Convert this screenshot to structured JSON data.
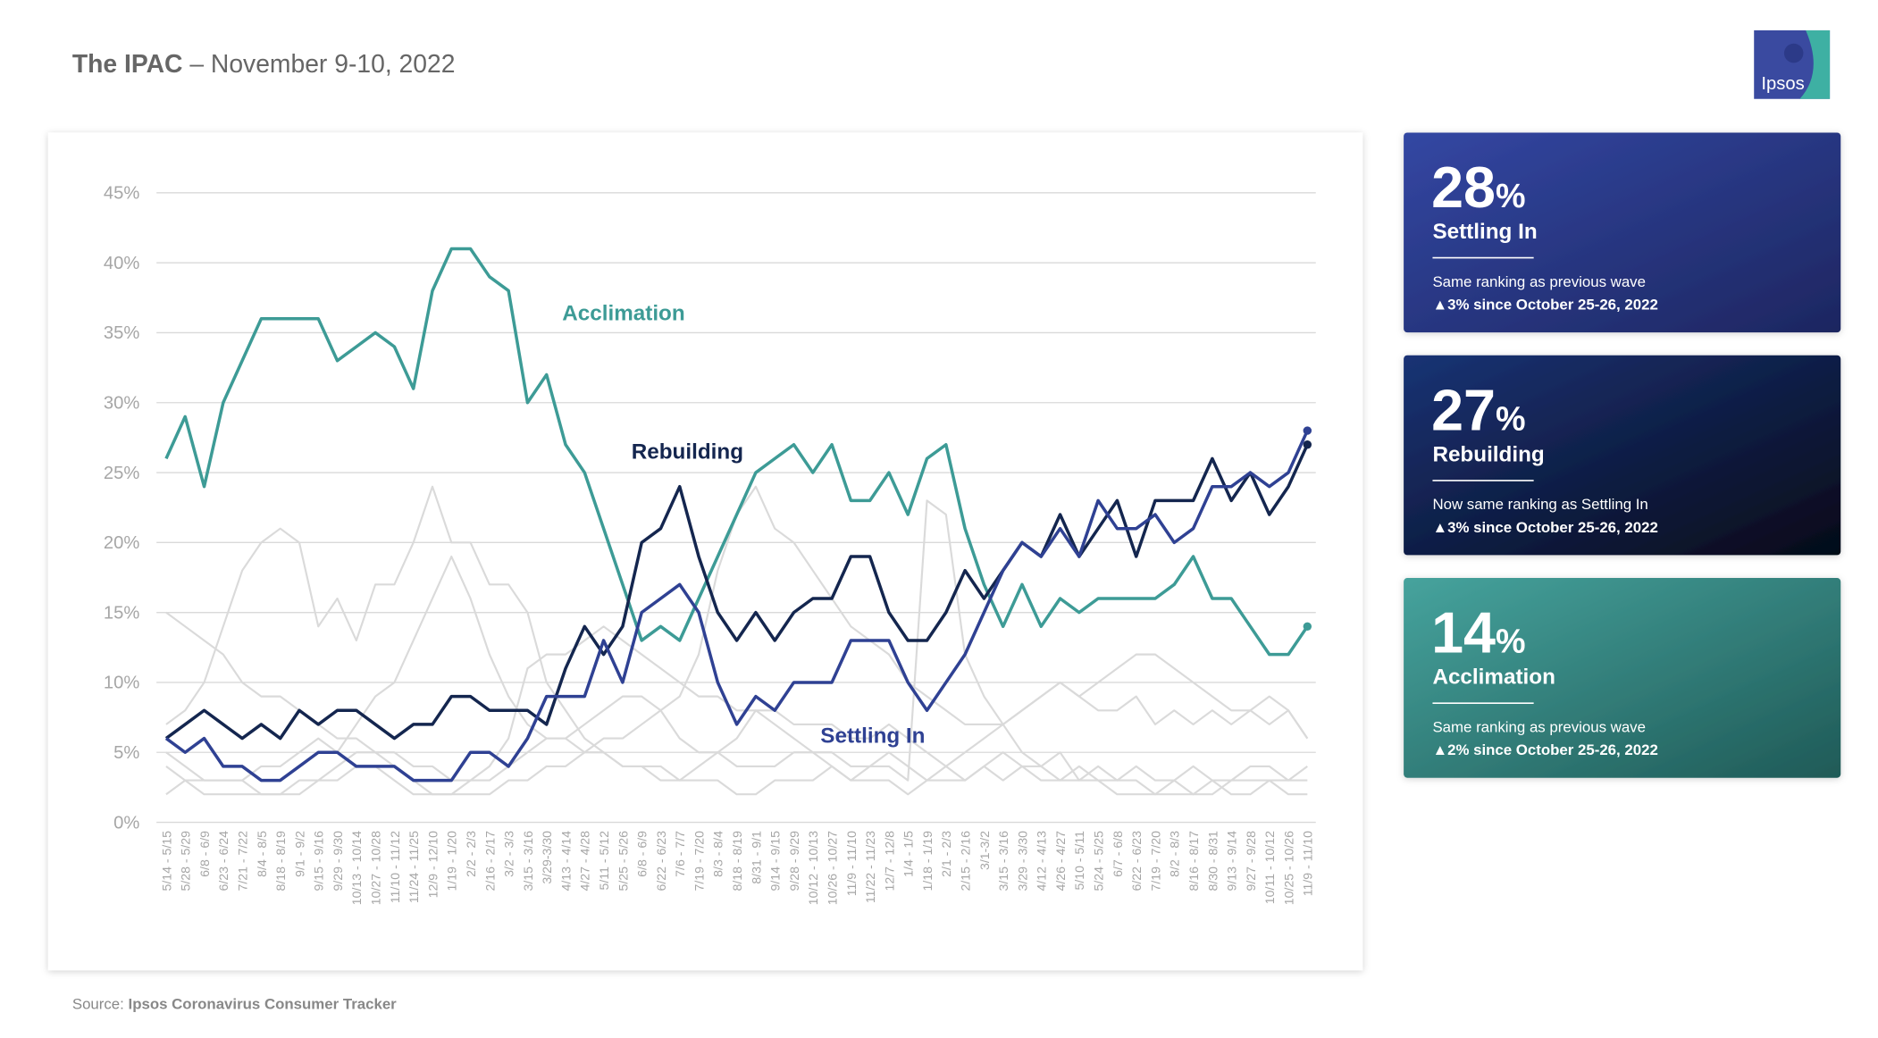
{
  "header": {
    "title": "The IPAC",
    "subtitle": "– November 9-10, 2022",
    "logo": "Ipsos"
  },
  "chart_data": {
    "type": "line",
    "categories": [
      "5/14 - 5/15",
      "5/28 - 5/29",
      "6/8 - 6/9",
      "6/23 - 6/24",
      "7/21 - 7/22",
      "8/4 - 8/5",
      "8/18 - 8/19",
      "9/1 - 9/2",
      "9/15 - 9/16",
      "9/29 - 9/30",
      "10/13 - 10/14",
      "10/27 - 10/28",
      "11/10 - 11/12",
      "11/24 - 11/25",
      "12/9 - 12/10",
      "1/19 - 1/20",
      "2/2 - 2/3",
      "2/16 - 2/17",
      "3/2 - 3/3",
      "3/15 - 3/16",
      "3/29-3/30",
      "4/13 - 4/14",
      "4/27 - 4/28",
      "5/11 - 5/12",
      "5/25 - 5/26",
      "6/8 - 6/9",
      "6/22 - 6/23",
      "7/6 - 7/7",
      "7/19 - 7/20",
      "8/3 - 8/4",
      "8/18 - 8/19",
      "8/31 - 9/1",
      "9/14 - 9/15",
      "9/28 - 9/29",
      "10/12 - 10/13",
      "10/26 - 10/27",
      "11/9 - 11/10",
      "11/22 - 11/23",
      "12/7 - 12/8",
      "1/4 - 1/5",
      "1/18 - 1/19",
      "2/1 - 2/3",
      "2/15 - 2/16",
      "3/1-3/2",
      "3/15 - 3/16",
      "3/29 - 3/30",
      "4/12 - 4/13",
      "4/26 - 4/27",
      "5/10 - 5/11",
      "5/24 - 5/25",
      "6/7 - 6/8",
      "6/22 - 6/23",
      "7/19 - 7/20",
      "8/2 - 8/3",
      "8/16 - 8/17",
      "8/30 - 8/31",
      "9/13 - 9/14",
      "9/27 - 9/28",
      "10/11 - 10/12",
      "10/25 - 10/26",
      "11/9 - 11/10"
    ],
    "ylim": [
      0,
      45
    ],
    "yticks": [
      {
        "value": 0,
        "label": "0%"
      },
      {
        "value": 5,
        "label": "5%"
      },
      {
        "value": 10,
        "label": "10%"
      },
      {
        "value": 15,
        "label": "15%"
      },
      {
        "value": 20,
        "label": "20%"
      },
      {
        "value": 25,
        "label": "25%"
      },
      {
        "value": 30,
        "label": "30%"
      },
      {
        "value": 35,
        "label": "35%"
      },
      {
        "value": 40,
        "label": "40%"
      },
      {
        "value": 45,
        "label": "45%"
      }
    ],
    "grid": true,
    "series": [
      {
        "color": "#dadada",
        "values": [
          15,
          14,
          13,
          12,
          10,
          9,
          9,
          8,
          7,
          6,
          6,
          5,
          5,
          4,
          4,
          3,
          3,
          3,
          4,
          5,
          6,
          6,
          5,
          5,
          4,
          4,
          4,
          3,
          3,
          3,
          2,
          2,
          3,
          3,
          3,
          4,
          3,
          3,
          3,
          2,
          3,
          3,
          3,
          4,
          3,
          4,
          4,
          5,
          3,
          4,
          3,
          4,
          3,
          3,
          4,
          3,
          3,
          3,
          3,
          3,
          3
        ]
      },
      {
        "color": "#dadada",
        "values": [
          7,
          8,
          10,
          14,
          18,
          20,
          21,
          20,
          14,
          16,
          13,
          17,
          17,
          20,
          24,
          20,
          20,
          17,
          17,
          15,
          10,
          8,
          6,
          5,
          4,
          4,
          3,
          3,
          4,
          5,
          6,
          8,
          7,
          6,
          5,
          5,
          4,
          4,
          5,
          4,
          3,
          4,
          5,
          6,
          7,
          8,
          9,
          10,
          9,
          8,
          8,
          9,
          7,
          8,
          7,
          8,
          7,
          8,
          7,
          8,
          6
        ]
      },
      {
        "color": "#dadada",
        "values": [
          5,
          4,
          3,
          3,
          3,
          4,
          4,
          5,
          6,
          5,
          7,
          9,
          10,
          13,
          16,
          19,
          16,
          12,
          9,
          7,
          6,
          6,
          7,
          8,
          9,
          9,
          8,
          6,
          5,
          5,
          4,
          4,
          4,
          5,
          5,
          4,
          3,
          4,
          4,
          3,
          23,
          22,
          12,
          9,
          7,
          5,
          4,
          3,
          3,
          3,
          3,
          3,
          2,
          2,
          2,
          3,
          2,
          2,
          3,
          2,
          2
        ]
      },
      {
        "color": "#dadada",
        "values": [
          4,
          3,
          2,
          2,
          2,
          2,
          2,
          3,
          3,
          3,
          4,
          4,
          3,
          2,
          2,
          2,
          2,
          2,
          3,
          3,
          4,
          4,
          5,
          6,
          6,
          7,
          8,
          9,
          12,
          18,
          22,
          24,
          21,
          20,
          18,
          16,
          14,
          13,
          12,
          10,
          9,
          8,
          7,
          7,
          7,
          8,
          9,
          10,
          9,
          10,
          11,
          12,
          12,
          11,
          10,
          9,
          8,
          8,
          9,
          8,
          6
        ]
      },
      {
        "color": "#dadada",
        "values": [
          2,
          3,
          3,
          3,
          3,
          2,
          2,
          2,
          3,
          4,
          5,
          5,
          4,
          3,
          2,
          2,
          3,
          4,
          6,
          11,
          12,
          12,
          13,
          14,
          13,
          12,
          11,
          10,
          9,
          9,
          8,
          8,
          8,
          7,
          7,
          7,
          6,
          6,
          7,
          6,
          5,
          4,
          3,
          4,
          5,
          4,
          3,
          3,
          4,
          3,
          2,
          2,
          2,
          3,
          2,
          2,
          3,
          4,
          4,
          3,
          4
        ]
      },
      {
        "name": "Acclimation",
        "color": "#3d9b96",
        "values": [
          26,
          29,
          24,
          30,
          33,
          36,
          36,
          36,
          36,
          33,
          34,
          35,
          34,
          31,
          38,
          41,
          41,
          39,
          38,
          30,
          32,
          27,
          25,
          21,
          17,
          13,
          14,
          13,
          16,
          19,
          22,
          25,
          26,
          27,
          25,
          27,
          23,
          23,
          25,
          22,
          26,
          27,
          21,
          17,
          14,
          17,
          14,
          16,
          15,
          16,
          16,
          16,
          16,
          17,
          19,
          16,
          16,
          14,
          12,
          12,
          14
        ]
      },
      {
        "name": "Rebuilding",
        "color": "#14264f",
        "values": [
          6,
          7,
          8,
          7,
          6,
          7,
          6,
          8,
          7,
          8,
          8,
          7,
          6,
          7,
          7,
          9,
          9,
          8,
          8,
          8,
          7,
          11,
          14,
          12,
          14,
          20,
          21,
          24,
          19,
          15,
          13,
          15,
          13,
          15,
          16,
          16,
          19,
          19,
          15,
          13,
          13,
          15,
          18,
          16,
          18,
          20,
          19,
          22,
          19,
          21,
          23,
          19,
          23,
          23,
          23,
          26,
          23,
          25,
          22,
          24,
          27
        ]
      },
      {
        "name": "Settling In",
        "color": "#2f4193",
        "values": [
          6,
          5,
          6,
          4,
          4,
          3,
          3,
          4,
          5,
          5,
          4,
          4,
          4,
          3,
          3,
          3,
          5,
          5,
          4,
          6,
          9,
          9,
          9,
          13,
          10,
          15,
          16,
          17,
          15,
          10,
          7,
          9,
          8,
          10,
          10,
          10,
          13,
          13,
          13,
          10,
          8,
          10,
          12,
          15,
          18,
          20,
          19,
          21,
          19,
          23,
          21,
          21,
          22,
          20,
          21,
          24,
          24,
          25,
          24,
          25,
          28
        ]
      }
    ]
  },
  "cards": [
    {
      "value": "28",
      "unit": "%",
      "name": "Settling In",
      "note": "Same ranking as previous wave",
      "change": "▲3% since October 25-26, 2022"
    },
    {
      "value": "27",
      "unit": "%",
      "name": "Rebuilding",
      "note": "Now same ranking as Settling In",
      "change": "▲3% since October 25-26, 2022"
    },
    {
      "value": "14",
      "unit": "%",
      "name": "Acclimation",
      "note": "Same ranking as previous wave",
      "change": "▲2% since October 25-26, 2022"
    }
  ],
  "source": {
    "prefix": "Source:",
    "text": "Ipsos Coronavirus Consumer Tracker"
  }
}
